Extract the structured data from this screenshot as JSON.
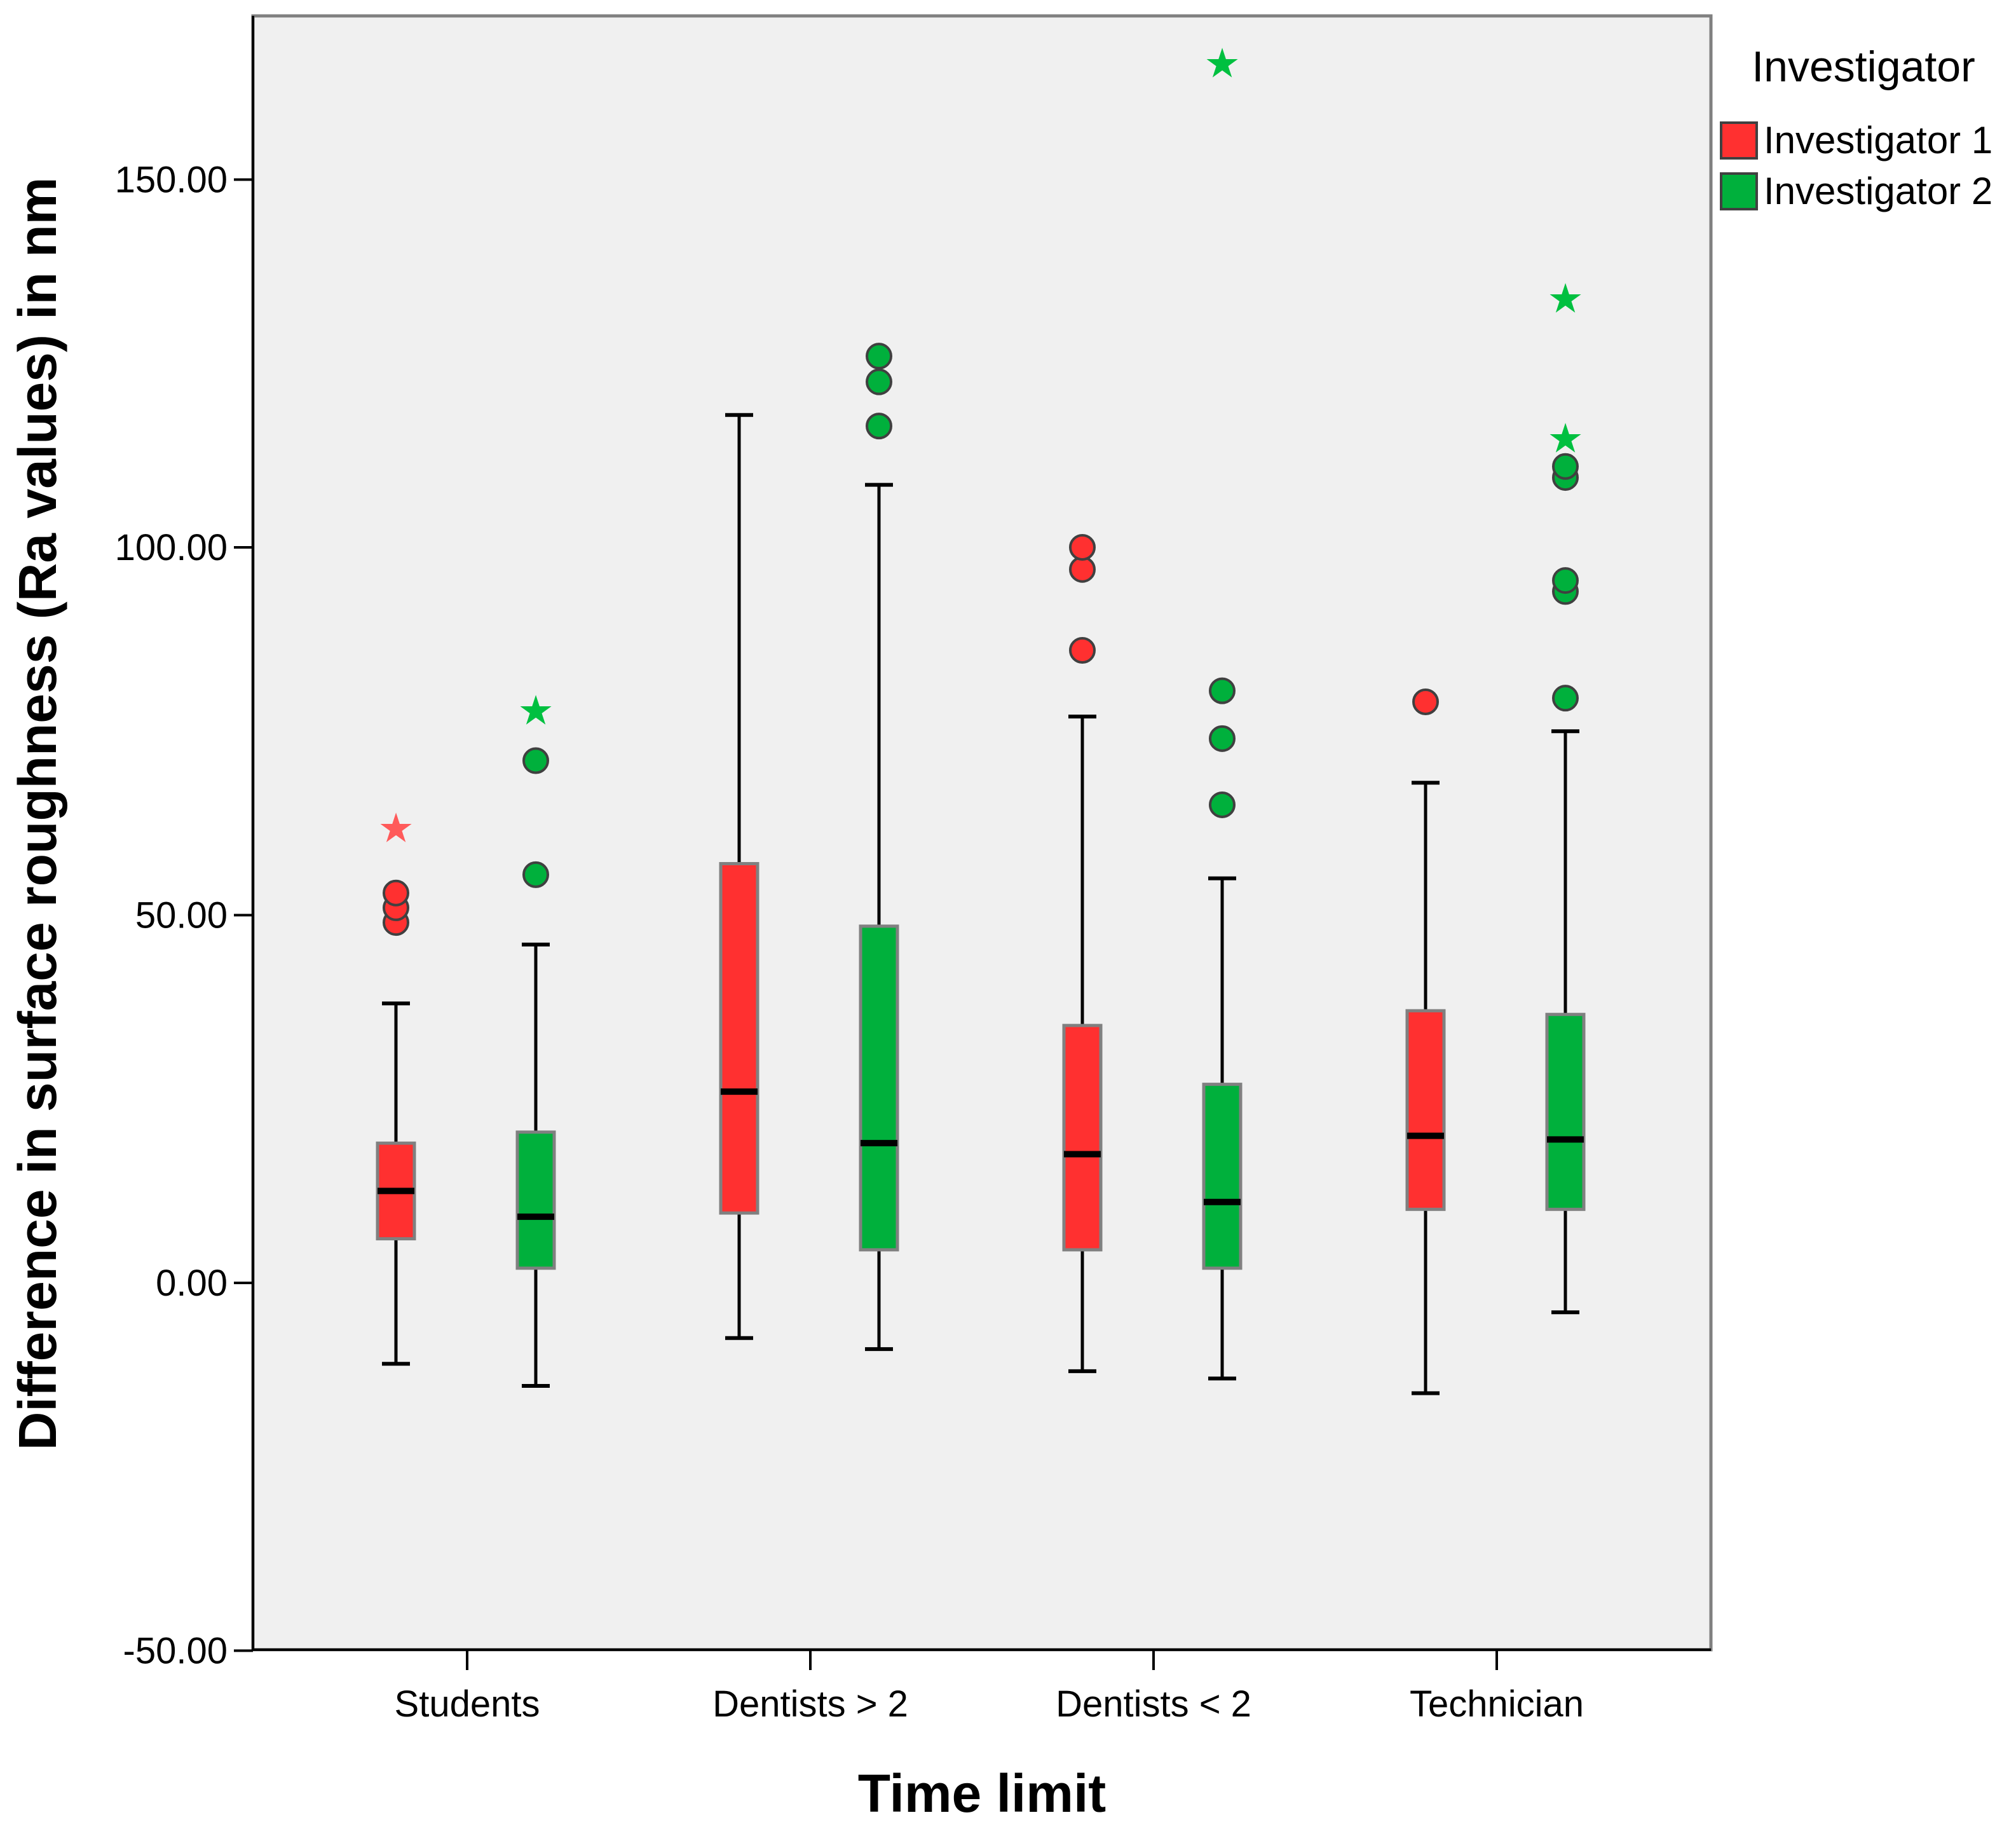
{
  "chart_data": {
    "type": "boxplot",
    "xlabel": "Time limit",
    "ylabel": "Difference in surface roughness (Ra values) in nm",
    "ylim": [
      -50,
      170
    ],
    "yticks": [
      -50,
      0,
      50,
      100,
      150
    ],
    "ytick_labels": [
      "-50.00",
      "0.00",
      "50.00",
      "100.00",
      "150.00"
    ],
    "categories": [
      "Students",
      "Dentists  > 2",
      "Dentists < 2",
      "Technician"
    ],
    "legend": {
      "title": "Investigator",
      "position": "top-right"
    },
    "series": [
      {
        "name": "Investigator 1",
        "color": "#ff3030",
        "outlier_star_color": "#ff5a5a",
        "boxes": [
          {
            "whisker_low": -11,
            "q1": 6,
            "median": 12.5,
            "q3": 19,
            "whisker_high": 38,
            "outliers": [
              49,
              51,
              53
            ],
            "extremes": [
              62
            ]
          },
          {
            "whisker_low": -7.5,
            "q1": 9.5,
            "median": 26,
            "q3": 57,
            "whisker_high": 118,
            "outliers": [],
            "extremes": []
          },
          {
            "whisker_low": -12,
            "q1": 4.5,
            "median": 17.5,
            "q3": 35,
            "whisker_high": 77,
            "outliers": [
              86,
              97,
              100
            ],
            "extremes": []
          },
          {
            "whisker_low": -15,
            "q1": 10,
            "median": 20,
            "q3": 37,
            "whisker_high": 68,
            "outliers": [
              79
            ],
            "extremes": []
          }
        ]
      },
      {
        "name": "Investigator 2",
        "color": "#00b03c",
        "outlier_star_color": "#00c040",
        "boxes": [
          {
            "whisker_low": -14,
            "q1": 2,
            "median": 9,
            "q3": 20.5,
            "whisker_high": 46,
            "outliers": [
              55.5,
              71
            ],
            "extremes": [
              78
            ]
          },
          {
            "whisker_low": -9,
            "q1": 4.5,
            "median": 19,
            "q3": 48.5,
            "whisker_high": 108.5,
            "outliers": [
              116.5,
              122.5,
              126
            ],
            "extremes": []
          },
          {
            "whisker_low": -13,
            "q1": 2,
            "median": 11,
            "q3": 27,
            "whisker_high": 55,
            "outliers": [
              65,
              74,
              80.5
            ],
            "extremes": [
              166
            ]
          },
          {
            "whisker_low": -4,
            "q1": 10,
            "median": 19.5,
            "q3": 36.5,
            "whisker_high": 75,
            "outliers": [
              79.5,
              94,
              95.5,
              109.5,
              111
            ],
            "extremes": [
              115,
              134
            ]
          }
        ]
      }
    ]
  }
}
